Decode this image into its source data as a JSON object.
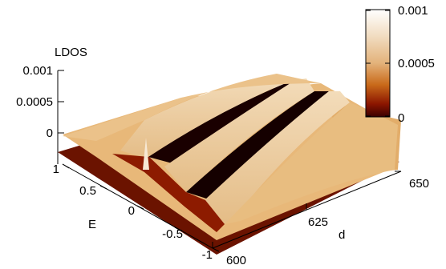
{
  "chart_data": {
    "type": "surface",
    "title": "",
    "zlabel": "LDOS",
    "xlabel": "d",
    "ylabel": "E",
    "x_ticks": [
      "600",
      "625",
      "650"
    ],
    "y_ticks": [
      "1",
      "0.5",
      "0",
      "-0.5",
      "-1"
    ],
    "z_ticks": [
      "0.001",
      "0.0005",
      "0"
    ],
    "xlim": [
      600,
      650
    ],
    "ylim": [
      -1,
      1
    ],
    "zlim": [
      0,
      0.001
    ],
    "colorbar": {
      "ticks": [
        "0.001",
        "0.0005",
        "0"
      ],
      "range": [
        0,
        0.001
      ],
      "colormap": [
        "#3a0000",
        "#8b1500",
        "#c96a1a",
        "#e3b27a",
        "#f1dcc0",
        "#ffffff"
      ]
    },
    "ridges_description_values": [
      {
        "d_center": 612,
        "E_from": -0.25,
        "E_to": 1.0,
        "height": 0.00055
      },
      {
        "d_center": 625,
        "E_from": -1.0,
        "E_to": 1.0,
        "height": 0.00055
      },
      {
        "d_center": 638,
        "E_from": -1.0,
        "E_to": 1.0,
        "height": 0.00055
      }
    ],
    "plateau_level": 0.0003
  }
}
